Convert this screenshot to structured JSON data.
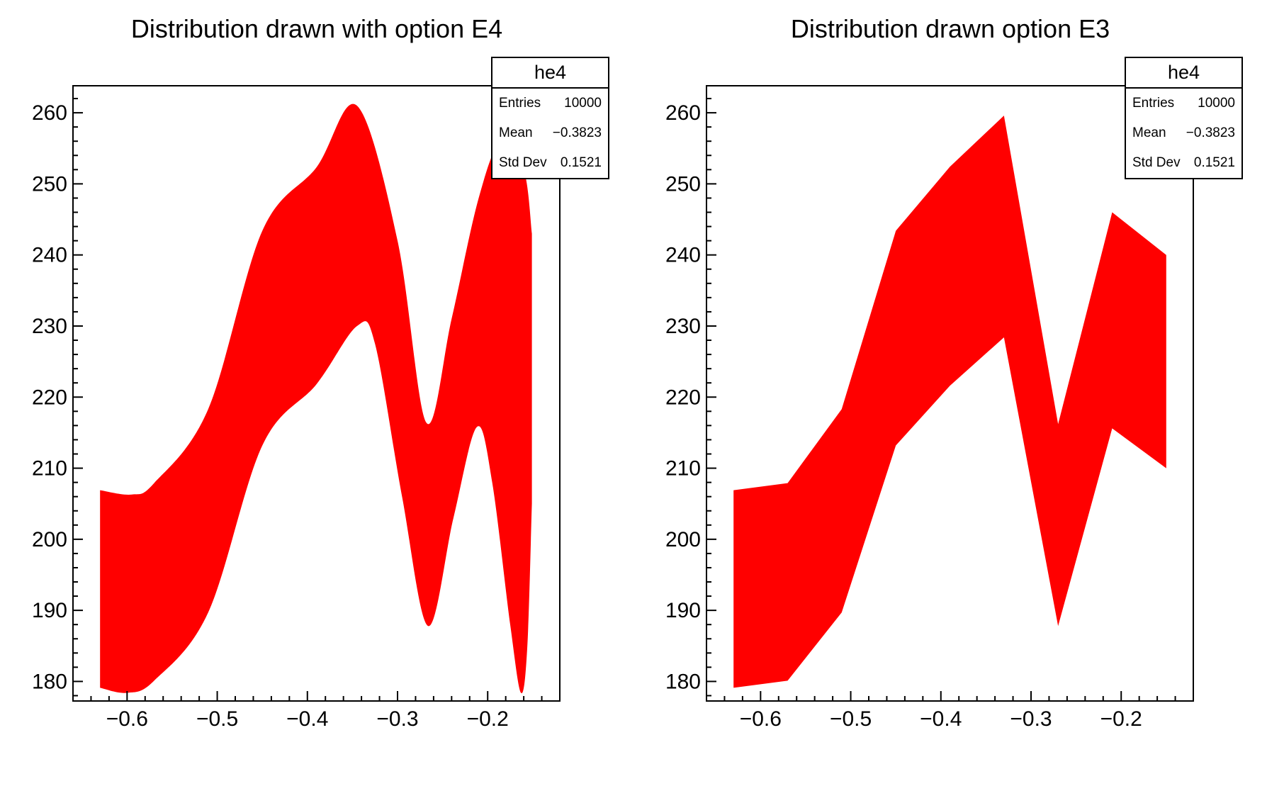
{
  "app": {
    "type": "ROOT canvas",
    "background": "#ffffff"
  },
  "colors": {
    "band": "#ff0000",
    "axis": "#000000",
    "text": "#000000",
    "stats_background": "#ffffff",
    "stats_border": "#000000"
  },
  "stats": {
    "title": "he4",
    "rows": [
      {
        "label": "Entries",
        "value": "10000"
      },
      {
        "label": "Mean",
        "value": "−0.3823"
      },
      {
        "label": "Std Dev",
        "value": "0.1521"
      }
    ]
  },
  "pads": [
    {
      "title": "Distribution drawn with option E4",
      "draw_option": "E4"
    },
    {
      "title": "Distribution drawn option E3",
      "draw_option": "E3"
    }
  ],
  "chart_data": [
    {
      "type": "area",
      "subtype": "error-band",
      "histogram": "he4",
      "draw_option": "E4",
      "title": "Distribution drawn with option E4",
      "x": [
        -0.63,
        -0.57,
        -0.51,
        -0.45,
        -0.39,
        -0.33,
        -0.27,
        -0.21,
        -0.15
      ],
      "values": [
        193.0,
        194.0,
        204.0,
        228.3,
        237.0,
        244.0,
        202.0,
        230.8,
        225.0
      ],
      "errors": [
        13.9,
        13.9,
        14.3,
        15.1,
        15.4,
        15.6,
        14.2,
        15.2,
        15.0
      ],
      "bin_width": 0.06,
      "xlim": [
        -0.66,
        -0.12
      ],
      "ylim": [
        177.25,
        263.8
      ],
      "x_major_ticks": [
        -0.6,
        -0.5,
        -0.4,
        -0.3,
        -0.2
      ],
      "x_tick_labels": [
        "−0.6",
        "−0.5",
        "−0.4",
        "−0.3",
        "−0.2"
      ],
      "x_minor_step": 0.02,
      "y_major_ticks": [
        180,
        190,
        200,
        210,
        220,
        230,
        240,
        250,
        260
      ],
      "y_tick_labels": [
        "180",
        "190",
        "200",
        "210",
        "220",
        "230",
        "240",
        "250",
        "260"
      ],
      "y_minor_step": 2,
      "band_color": "#ff0000",
      "grid": false,
      "legend_position": "stats-box-top-right",
      "upper_outline": [
        [
          -0.63,
          206.9
        ],
        [
          -0.595,
          206.3
        ],
        [
          -0.57,
          207.9
        ],
        [
          -0.51,
          218.3
        ],
        [
          -0.45,
          243.4
        ],
        [
          -0.39,
          252.3
        ],
        [
          -0.345,
          261.0
        ],
        [
          -0.3,
          242.0
        ],
        [
          -0.268,
          216.4
        ],
        [
          -0.24,
          231.0
        ],
        [
          -0.21,
          248.0
        ],
        [
          -0.185,
          256.0
        ],
        [
          -0.16,
          252.0
        ],
        [
          -0.151,
          243.0
        ]
      ],
      "lower_outline": [
        [
          -0.63,
          179.1
        ],
        [
          -0.6,
          178.4
        ],
        [
          -0.57,
          180.1
        ],
        [
          -0.51,
          189.7
        ],
        [
          -0.45,
          213.2
        ],
        [
          -0.39,
          221.8
        ],
        [
          -0.345,
          230.0
        ],
        [
          -0.325,
          227.5
        ],
        [
          -0.295,
          206.0
        ],
        [
          -0.266,
          187.8
        ],
        [
          -0.238,
          203.0
        ],
        [
          -0.212,
          215.8
        ],
        [
          -0.195,
          208.0
        ],
        [
          -0.175,
          188.0
        ],
        [
          -0.163,
          178.4
        ],
        [
          -0.156,
          185.0
        ],
        [
          -0.151,
          205.0
        ]
      ]
    },
    {
      "type": "area",
      "subtype": "error-band",
      "histogram": "he4",
      "draw_option": "E3",
      "title": "Distribution drawn option E3",
      "x": [
        -0.63,
        -0.57,
        -0.51,
        -0.45,
        -0.39,
        -0.33,
        -0.27,
        -0.21,
        -0.15
      ],
      "values": [
        193.0,
        194.0,
        204.0,
        228.3,
        237.0,
        244.0,
        202.0,
        230.8,
        225.0
      ],
      "errors": [
        13.9,
        13.9,
        14.3,
        15.1,
        15.4,
        15.6,
        14.2,
        15.2,
        15.0
      ],
      "bin_width": 0.06,
      "xlim": [
        -0.66,
        -0.12
      ],
      "ylim": [
        177.25,
        263.8
      ],
      "x_major_ticks": [
        -0.6,
        -0.5,
        -0.4,
        -0.3,
        -0.2
      ],
      "x_tick_labels": [
        "−0.6",
        "−0.5",
        "−0.4",
        "−0.3",
        "−0.2"
      ],
      "x_minor_step": 0.02,
      "y_major_ticks": [
        180,
        190,
        200,
        210,
        220,
        230,
        240,
        250,
        260
      ],
      "y_tick_labels": [
        "180",
        "190",
        "200",
        "210",
        "220",
        "230",
        "240",
        "250",
        "260"
      ],
      "y_minor_step": 2,
      "band_color": "#ff0000",
      "grid": false,
      "legend_position": "stats-box-top-right"
    }
  ]
}
